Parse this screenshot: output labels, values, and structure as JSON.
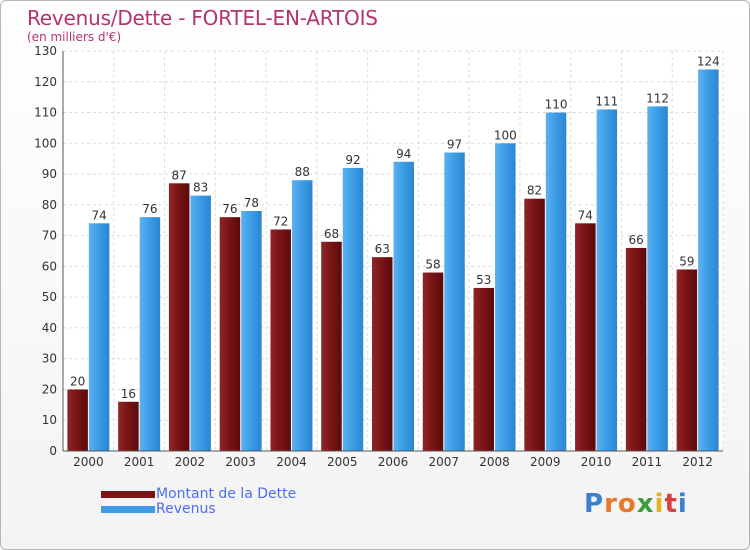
{
  "chart_data": {
    "type": "bar",
    "title": "Revenus/Dette - FORTEL-EN-ARTOIS",
    "subtitle": "(en milliers d'€)",
    "categories": [
      "2000",
      "2001",
      "2002",
      "2003",
      "2004",
      "2005",
      "2006",
      "2007",
      "2008",
      "2009",
      "2010",
      "2011",
      "2012"
    ],
    "series": [
      {
        "name": "Montant de la Dette",
        "color": "#7a1416",
        "values": [
          20,
          16,
          87,
          76,
          72,
          68,
          63,
          58,
          53,
          82,
          74,
          66,
          59
        ]
      },
      {
        "name": "Revenus",
        "color": "#3d9de6",
        "values": [
          74,
          76,
          83,
          78,
          88,
          92,
          94,
          97,
          100,
          110,
          111,
          112,
          124
        ]
      }
    ],
    "ylim": [
      0,
      130
    ],
    "yticks": [
      0,
      10,
      20,
      30,
      40,
      50,
      60,
      70,
      80,
      90,
      100,
      110,
      120,
      130
    ],
    "grid": true,
    "legend": "bottom-left"
  },
  "brand": {
    "text": "Proxiti",
    "letters": [
      "P",
      "r",
      "o",
      "x",
      "i",
      "t",
      "i"
    ],
    "colors": [
      "#3a7fd0",
      "#e8782c",
      "#e8782c",
      "#3a9d3a",
      "#e4b321",
      "#d94040",
      "#3a7fd0"
    ]
  }
}
